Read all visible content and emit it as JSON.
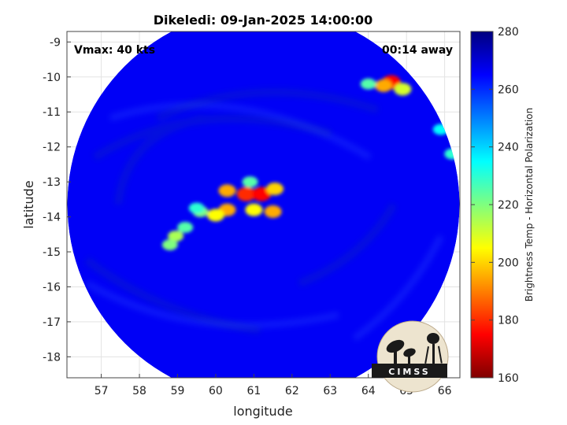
{
  "chart_data": {
    "type": "heatmap",
    "title": "Dikeledi: 09-Jan-2025 14:00:00",
    "xlabel": "longitude",
    "ylabel": "latitude",
    "xlim": [
      56.1,
      66.4
    ],
    "ylim": [
      -18.6,
      -8.7
    ],
    "x_ticks": [
      57,
      58,
      59,
      60,
      61,
      62,
      63,
      64,
      65,
      66
    ],
    "y_ticks": [
      -9,
      -10,
      -11,
      -12,
      -13,
      -14,
      -15,
      -16,
      -17,
      -18
    ],
    "grid": true,
    "colorbar": {
      "label": "Brightness Temp - Horizontal Polarization",
      "range": [
        160,
        280
      ],
      "ticks": [
        160,
        180,
        200,
        220,
        240,
        260,
        280
      ],
      "colormap": "jet"
    },
    "annotations": {
      "top_left": "Vmax: 40 kts",
      "top_right": "00:14 away"
    },
    "swath_center": [
      61.25,
      -13.65
    ],
    "background_tb": 266,
    "features": [
      {
        "lon": 60.3,
        "lat": -13.25,
        "tb": 195
      },
      {
        "lon": 60.8,
        "lat": -13.35,
        "tb": 180
      },
      {
        "lon": 61.2,
        "lat": -13.35,
        "tb": 175
      },
      {
        "lon": 61.55,
        "lat": -13.2,
        "tb": 200
      },
      {
        "lon": 60.9,
        "lat": -13.0,
        "tb": 225
      },
      {
        "lon": 61.5,
        "lat": -13.85,
        "tb": 195
      },
      {
        "lon": 61.0,
        "lat": -13.8,
        "tb": 205
      },
      {
        "lon": 60.3,
        "lat": -13.8,
        "tb": 195
      },
      {
        "lon": 60.0,
        "lat": -13.95,
        "tb": 205
      },
      {
        "lon": 59.6,
        "lat": -13.85,
        "tb": 220
      },
      {
        "lon": 59.2,
        "lat": -14.3,
        "tb": 225
      },
      {
        "lon": 58.95,
        "lat": -14.55,
        "tb": 215
      },
      {
        "lon": 58.8,
        "lat": -14.8,
        "tb": 220
      },
      {
        "lon": 59.5,
        "lat": -13.75,
        "tb": 230
      },
      {
        "lon": 64.6,
        "lat": -10.15,
        "tb": 175
      },
      {
        "lon": 64.4,
        "lat": -10.25,
        "tb": 195
      },
      {
        "lon": 64.9,
        "lat": -10.35,
        "tb": 210
      },
      {
        "lon": 64.0,
        "lat": -10.2,
        "tb": 225
      },
      {
        "lon": 65.9,
        "lat": -11.5,
        "tb": 235
      },
      {
        "lon": 66.2,
        "lat": -12.2,
        "tb": 230
      }
    ]
  },
  "logo": {
    "text": "CIMSS"
  }
}
